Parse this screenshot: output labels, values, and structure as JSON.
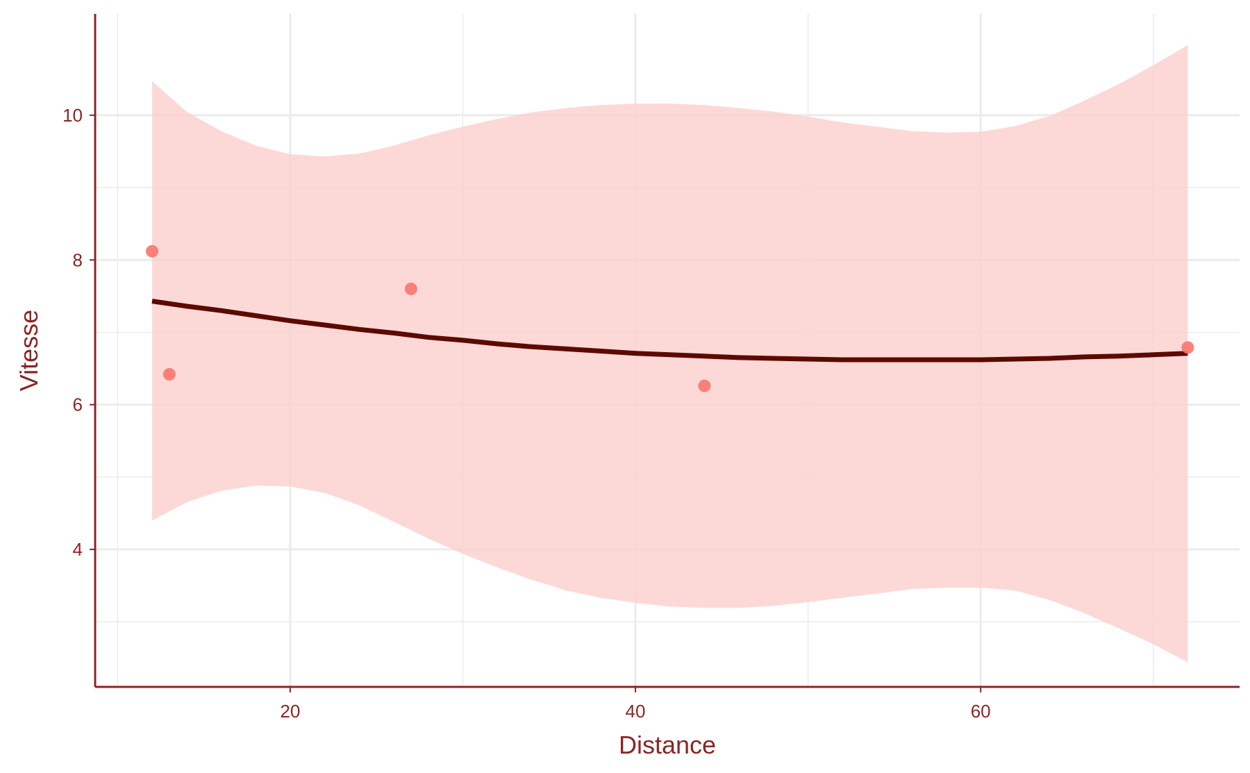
{
  "chart_data": {
    "type": "scatter",
    "title": "",
    "xlabel": "Distance",
    "ylabel": "Vitesse",
    "xlim": [
      8.7,
      75.0
    ],
    "ylim": [
      2.1,
      11.4
    ],
    "x_major_ticks": [
      20,
      40,
      60
    ],
    "x_minor_gridlines": [
      10,
      30,
      50,
      70
    ],
    "y_major_ticks": [
      4,
      6,
      8,
      10
    ],
    "y_minor_gridlines": [
      3,
      5,
      7,
      9
    ],
    "grid": true,
    "legend": "none",
    "colors": {
      "points": "#f8766d",
      "smooth_line": "#5c0a00",
      "ribbon": "#fbd0cd",
      "axis": "#8b2525",
      "grid": "#ebebeb"
    },
    "points": [
      {
        "x": 12.0,
        "y": 8.12
      },
      {
        "x": 13.0,
        "y": 6.42
      },
      {
        "x": 27.0,
        "y": 7.6
      },
      {
        "x": 44.0,
        "y": 6.26
      },
      {
        "x": 72.0,
        "y": 6.79
      }
    ],
    "smooth": [
      {
        "x": 12.0,
        "y": 7.43,
        "lower": 4.4,
        "upper": 10.47
      },
      {
        "x": 14.0,
        "y": 7.36,
        "lower": 4.65,
        "upper": 10.05
      },
      {
        "x": 16.0,
        "y": 7.3,
        "lower": 4.81,
        "upper": 9.78
      },
      {
        "x": 18.0,
        "y": 7.23,
        "lower": 4.88,
        "upper": 9.58
      },
      {
        "x": 20.0,
        "y": 7.16,
        "lower": 4.87,
        "upper": 9.46
      },
      {
        "x": 22.0,
        "y": 7.1,
        "lower": 4.78,
        "upper": 9.43
      },
      {
        "x": 24.0,
        "y": 7.04,
        "lower": 4.61,
        "upper": 9.47
      },
      {
        "x": 26.0,
        "y": 6.99,
        "lower": 4.38,
        "upper": 9.58
      },
      {
        "x": 28.0,
        "y": 6.93,
        "lower": 4.15,
        "upper": 9.72
      },
      {
        "x": 30.0,
        "y": 6.89,
        "lower": 3.94,
        "upper": 9.84
      },
      {
        "x": 32.0,
        "y": 6.84,
        "lower": 3.75,
        "upper": 9.95
      },
      {
        "x": 34.0,
        "y": 6.8,
        "lower": 3.58,
        "upper": 10.04
      },
      {
        "x": 36.0,
        "y": 6.77,
        "lower": 3.43,
        "upper": 10.1
      },
      {
        "x": 38.0,
        "y": 6.74,
        "lower": 3.33,
        "upper": 10.14
      },
      {
        "x": 40.0,
        "y": 6.71,
        "lower": 3.26,
        "upper": 10.16
      },
      {
        "x": 42.0,
        "y": 6.69,
        "lower": 3.21,
        "upper": 10.16
      },
      {
        "x": 44.0,
        "y": 6.67,
        "lower": 3.19,
        "upper": 10.14
      },
      {
        "x": 46.0,
        "y": 6.65,
        "lower": 3.19,
        "upper": 10.1
      },
      {
        "x": 48.0,
        "y": 6.64,
        "lower": 3.22,
        "upper": 10.05
      },
      {
        "x": 50.0,
        "y": 6.63,
        "lower": 3.27,
        "upper": 9.98
      },
      {
        "x": 52.0,
        "y": 6.62,
        "lower": 3.33,
        "upper": 9.9
      },
      {
        "x": 54.0,
        "y": 6.62,
        "lower": 3.39,
        "upper": 9.84
      },
      {
        "x": 56.0,
        "y": 6.62,
        "lower": 3.45,
        "upper": 9.78
      },
      {
        "x": 58.0,
        "y": 6.62,
        "lower": 3.47,
        "upper": 9.76
      },
      {
        "x": 60.0,
        "y": 6.62,
        "lower": 3.47,
        "upper": 9.77
      },
      {
        "x": 62.0,
        "y": 6.63,
        "lower": 3.43,
        "upper": 9.85
      },
      {
        "x": 64.0,
        "y": 6.64,
        "lower": 3.3,
        "upper": 9.99
      },
      {
        "x": 66.0,
        "y": 6.66,
        "lower": 3.12,
        "upper": 10.2
      },
      {
        "x": 68.0,
        "y": 6.67,
        "lower": 2.91,
        "upper": 10.43
      },
      {
        "x": 70.0,
        "y": 6.69,
        "lower": 2.69,
        "upper": 10.69
      },
      {
        "x": 72.0,
        "y": 6.71,
        "lower": 2.44,
        "upper": 10.97
      }
    ]
  }
}
